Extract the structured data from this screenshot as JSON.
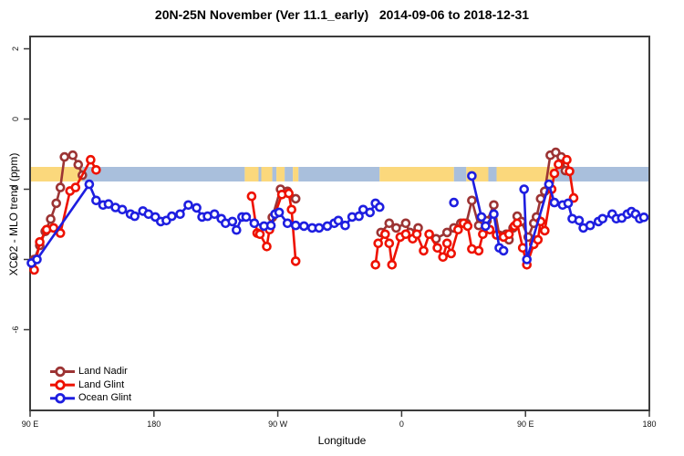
{
  "title": "20N-25N November (Ver 11.1_early)   2014-09-06 to 2018-12-31",
  "chart_data": {
    "type": "line",
    "title": "20N-25N November (Ver 11.1_early)   2014-09-06 to 2018-12-31",
    "xlabel": "Longitude",
    "ylabel": "XCO2 - MLO trend (ppm)",
    "grid": false,
    "legend_position": "bottom-left",
    "xlim_longitude_wrapped": [
      90,
      540
    ],
    "ylim": [
      -8.3,
      2.35
    ],
    "x_ticks": [
      {
        "lon": 90,
        "label": "90 E"
      },
      {
        "lon": 180,
        "label": "180"
      },
      {
        "lon": 270,
        "label": "90 W"
      },
      {
        "lon": 360,
        "label": "0"
      },
      {
        "lon": 450,
        "label": "90 E"
      },
      {
        "lon": 540,
        "label": "180"
      }
    ],
    "y_ticks": [
      "2",
      "0",
      "-2",
      "-4",
      "-6"
    ],
    "surface_band": {
      "description": "land/ocean strip along longitude at about -1.4 to -1.8 ppm",
      "land_color": "#FBD87C",
      "ocean_color": "#A9BFDC",
      "segments": [
        [
          90,
          128,
          "land"
        ],
        [
          128,
          246,
          "ocean"
        ],
        [
          246,
          256,
          "land"
        ],
        [
          256,
          258,
          "ocean"
        ],
        [
          258,
          266,
          "land"
        ],
        [
          266,
          269,
          "ocean"
        ],
        [
          269,
          275,
          "land"
        ],
        [
          275,
          281,
          "ocean"
        ],
        [
          281,
          285,
          "land"
        ],
        [
          285,
          344,
          "ocean"
        ],
        [
          344,
          398,
          "land"
        ],
        [
          398,
          407,
          "ocean"
        ],
        [
          407,
          423,
          "land"
        ],
        [
          423,
          429,
          "ocean"
        ],
        [
          429,
          471,
          "land"
        ],
        [
          471,
          540,
          "ocean"
        ]
      ]
    },
    "series": [
      {
        "name": "Land Nadir",
        "color": "#9C3434",
        "segments": [
          [
            [
              93,
              -4.0
            ],
            [
              97,
              -3.6
            ],
            [
              101,
              -3.2
            ],
            [
              105,
              -2.85
            ],
            [
              109,
              -2.4
            ],
            [
              112,
              -1.95
            ],
            [
              115,
              -1.08
            ],
            [
              121,
              -1.03
            ],
            [
              125,
              -1.3
            ],
            [
              128,
              -1.6
            ]
          ],
          [
            [
              266,
              -2.8
            ],
            [
              272,
              -2.0
            ],
            [
              277,
              -2.06
            ],
            [
              283,
              -2.27
            ]
          ],
          [
            [
              345,
              -3.23
            ],
            [
              351,
              -2.97
            ],
            [
              356,
              -3.1
            ],
            [
              363,
              -2.97
            ],
            [
              366,
              -3.23
            ],
            [
              372,
              -3.1
            ]
          ],
          [
            [
              385,
              -3.41
            ],
            [
              393,
              -3.23
            ],
            [
              398,
              -3.1
            ],
            [
              403,
              -2.97
            ],
            [
              407,
              -2.97
            ],
            [
              411,
              -2.32
            ],
            [
              416,
              -3.03
            ],
            [
              422,
              -2.9
            ],
            [
              427,
              -2.45
            ],
            [
              431,
              -3.31
            ],
            [
              436,
              -3.28
            ],
            [
              438,
              -3.44
            ],
            [
              441,
              -3.1
            ],
            [
              444,
              -2.77
            ],
            [
              447,
              -2.92
            ],
            [
              452,
              -3.36
            ],
            [
              456,
              -2.97
            ],
            [
              458,
              -2.79
            ],
            [
              461,
              -2.27
            ],
            [
              464,
              -2.06
            ],
            [
              468,
              -1.03
            ],
            [
              472,
              -0.95
            ],
            [
              476,
              -1.08
            ],
            [
              479,
              -1.47
            ]
          ]
        ]
      },
      {
        "name": "Land Glint",
        "color": "#EE1100",
        "segments": [
          [
            [
              93,
              -4.3
            ],
            [
              97,
              -3.5
            ],
            [
              102,
              -3.15
            ],
            [
              107,
              -3.1
            ],
            [
              112,
              -3.25
            ],
            [
              119,
              -2.05
            ],
            [
              123,
              -1.95
            ],
            [
              134,
              -1.16
            ],
            [
              138,
              -1.45
            ]
          ],
          [
            [
              251,
              -2.2
            ],
            [
              255,
              -3.25
            ],
            [
              257,
              -3.28
            ],
            [
              262,
              -3.63
            ],
            [
              264,
              -3.15
            ],
            [
              273,
              -2.15
            ],
            [
              278,
              -2.12
            ],
            [
              280,
              -2.58
            ],
            [
              283,
              -4.05
            ]
          ],
          [
            [
              341,
              -4.15
            ],
            [
              343,
              -3.54
            ],
            [
              348,
              -3.28
            ],
            [
              351,
              -3.54
            ],
            [
              353,
              -4.15
            ],
            [
              359,
              -3.36
            ],
            [
              363,
              -3.28
            ],
            [
              368,
              -3.41
            ],
            [
              371,
              -3.28
            ],
            [
              376,
              -3.75
            ],
            [
              380,
              -3.28
            ],
            [
              386,
              -3.67
            ],
            [
              390,
              -3.93
            ],
            [
              393,
              -3.54
            ],
            [
              396,
              -3.83
            ],
            [
              401,
              -3.15
            ],
            [
              405,
              -2.97
            ],
            [
              408,
              -3.05
            ],
            [
              411,
              -3.7
            ],
            [
              416,
              -3.75
            ],
            [
              419,
              -3.28
            ],
            [
              424,
              -3.15
            ],
            [
              429,
              -3.3
            ],
            [
              434,
              -3.36
            ],
            [
              438,
              -3.28
            ],
            [
              442,
              -3.05
            ],
            [
              444,
              -2.97
            ],
            [
              448,
              -3.67
            ],
            [
              451,
              -4.15
            ],
            [
              456,
              -3.57
            ],
            [
              459,
              -3.44
            ],
            [
              461,
              -2.92
            ],
            [
              464,
              -3.18
            ],
            [
              469,
              -2.0
            ],
            [
              471,
              -1.55
            ],
            [
              474,
              -1.29
            ],
            [
              480,
              -1.16
            ],
            [
              482,
              -1.49
            ],
            [
              485,
              -2.25
            ]
          ]
        ]
      },
      {
        "name": "Ocean Glint",
        "color": "#1E1EE0",
        "segments": [
          [
            [
              91,
              -4.1
            ],
            [
              95,
              -4.0
            ],
            [
              133,
              -1.86
            ],
            [
              138,
              -2.32
            ],
            [
              143,
              -2.45
            ],
            [
              147,
              -2.42
            ],
            [
              152,
              -2.52
            ],
            [
              157,
              -2.58
            ],
            [
              163,
              -2.71
            ],
            [
              166,
              -2.77
            ],
            [
              172,
              -2.62
            ],
            [
              176,
              -2.71
            ],
            [
              181,
              -2.79
            ],
            [
              185,
              -2.92
            ],
            [
              189,
              -2.89
            ],
            [
              193,
              -2.77
            ],
            [
              199,
              -2.71
            ],
            [
              205,
              -2.45
            ],
            [
              211,
              -2.53
            ],
            [
              215,
              -2.79
            ],
            [
              219,
              -2.77
            ],
            [
              224,
              -2.71
            ],
            [
              229,
              -2.84
            ],
            [
              232,
              -2.97
            ],
            [
              237,
              -2.92
            ],
            [
              240,
              -3.16
            ],
            [
              244,
              -2.79
            ],
            [
              247,
              -2.79
            ],
            [
              253,
              -2.97
            ],
            [
              260,
              -3.05
            ],
            [
              265,
              -3.03
            ],
            [
              268,
              -2.71
            ],
            [
              271,
              -2.66
            ],
            [
              277,
              -2.97
            ],
            [
              283,
              -3.03
            ],
            [
              289,
              -3.05
            ],
            [
              295,
              -3.1
            ],
            [
              300,
              -3.1
            ],
            [
              306,
              -3.05
            ],
            [
              311,
              -2.97
            ],
            [
              314,
              -2.89
            ],
            [
              319,
              -3.03
            ],
            [
              324,
              -2.79
            ],
            [
              329,
              -2.77
            ],
            [
              332,
              -2.58
            ],
            [
              337,
              -2.66
            ],
            [
              341,
              -2.4
            ],
            [
              344,
              -2.51
            ]
          ],
          [
            [
              398,
              -2.38
            ]
          ],
          [
            [
              411,
              -1.62
            ],
            [
              418,
              -2.79
            ],
            [
              421,
              -3.05
            ],
            [
              427,
              -2.71
            ],
            [
              431,
              -3.67
            ],
            [
              434,
              -3.75
            ]
          ],
          [
            [
              449,
              -2.0
            ],
            [
              451,
              -4.0
            ],
            [
              467,
              -1.86
            ],
            [
              471,
              -2.38
            ],
            [
              477,
              -2.45
            ],
            [
              481,
              -2.4
            ],
            [
              484,
              -2.84
            ],
            [
              489,
              -2.89
            ],
            [
              492,
              -3.1
            ],
            [
              497,
              -3.03
            ],
            [
              503,
              -2.92
            ],
            [
              506,
              -2.84
            ],
            [
              513,
              -2.71
            ],
            [
              516,
              -2.84
            ],
            [
              520,
              -2.82
            ],
            [
              524,
              -2.71
            ],
            [
              527,
              -2.64
            ],
            [
              530,
              -2.71
            ],
            [
              533,
              -2.84
            ],
            [
              536,
              -2.8
            ]
          ]
        ]
      }
    ]
  }
}
